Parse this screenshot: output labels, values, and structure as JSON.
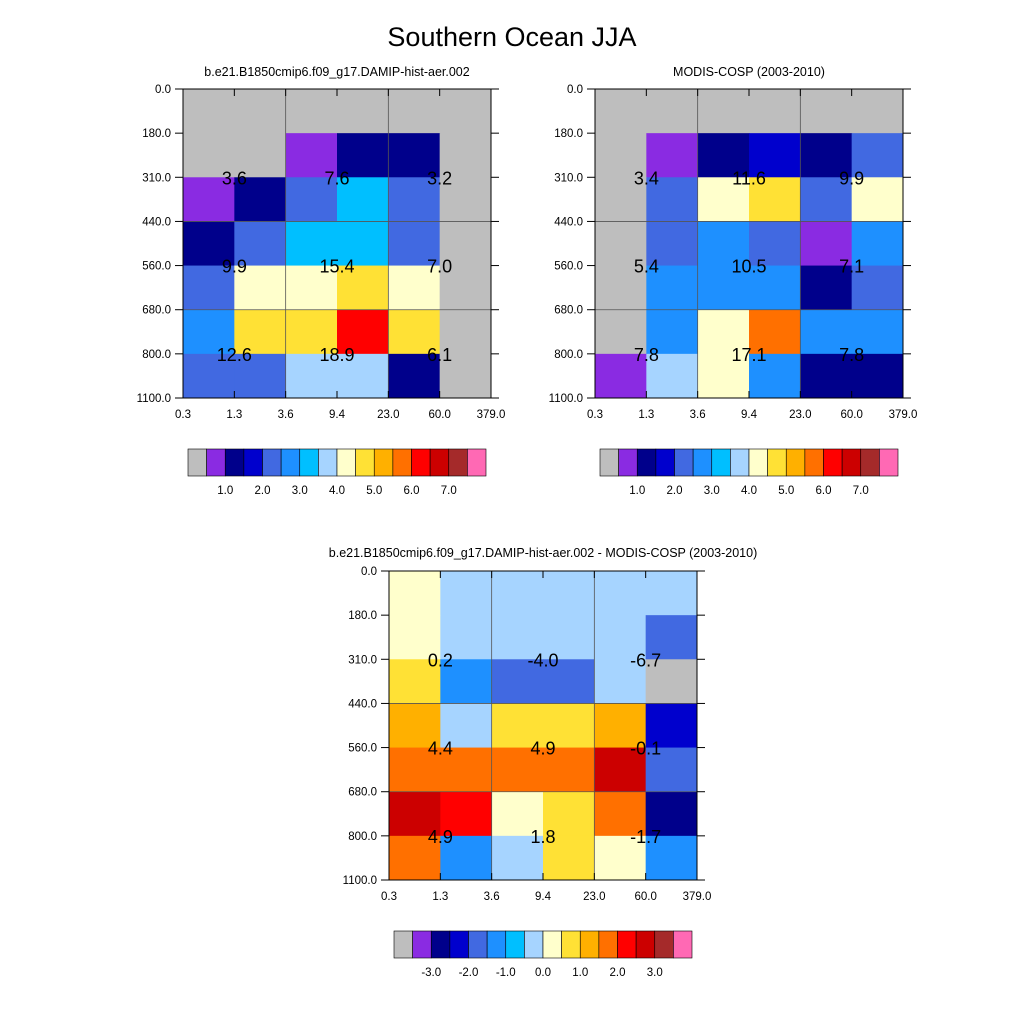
{
  "title": "Southern Ocean JJA",
  "panels": [
    {
      "id": "model",
      "title": "b.e21.B1850cmip6.f09_g17.DAMIP-hist-aer.002",
      "colorbar": "abs"
    },
    {
      "id": "obs",
      "title": "MODIS-COSP (2003-2010)",
      "colorbar": "abs"
    },
    {
      "id": "diff",
      "title": "b.e21.B1850cmip6.f09_g17.DAMIP-hist-aer.002 - MODIS-COSP (2003-2010)",
      "colorbar": "diff"
    }
  ],
  "colorbars": {
    "abs": {
      "colors": [
        "#bebebe",
        "#8a2be2",
        "#00008b",
        "#0000cd",
        "#4169e1",
        "#1e90ff",
        "#00bfff",
        "#a6d4ff",
        "#ffffcc",
        "#ffe135",
        "#ffb000",
        "#ff7000",
        "#ff0000",
        "#cc0000",
        "#a52a2a",
        "#ff69b4"
      ],
      "labels": [
        "1.0",
        "2.0",
        "3.0",
        "4.0",
        "5.0",
        "6.0",
        "7.0"
      ]
    },
    "diff": {
      "colors": [
        "#bebebe",
        "#8a2be2",
        "#00008b",
        "#0000cd",
        "#4169e1",
        "#1e90ff",
        "#00bfff",
        "#a6d4ff",
        "#ffffcc",
        "#ffe135",
        "#ffb000",
        "#ff7000",
        "#ff0000",
        "#cc0000",
        "#a52a2a",
        "#ff69b4"
      ],
      "labels": [
        "-3.0",
        "-2.0",
        "-1.0",
        "0.0",
        "1.0",
        "2.0",
        "3.0"
      ]
    }
  },
  "chart_data": [
    {
      "type": "heatmap",
      "title": "b.e21.B1850cmip6.f09_g17.DAMIP-hist-aer.002",
      "x_ticks": [
        "0.3",
        "1.3",
        "3.6",
        "9.4",
        "23.0",
        "60.0",
        "379.0"
      ],
      "y_ticks": [
        "0.0",
        "180.0",
        "310.0",
        "440.0",
        "560.0",
        "680.0",
        "800.0",
        "1100.0"
      ],
      "cell_colors": [
        [
          "#bebebe",
          "#bebebe",
          "#bebebe",
          "#bebebe",
          "#bebebe",
          "#bebebe"
        ],
        [
          "#bebebe",
          "#bebebe",
          "#8a2be2",
          "#00008b",
          "#00008b",
          "#bebebe"
        ],
        [
          "#8a2be2",
          "#00008b",
          "#4169e1",
          "#00bfff",
          "#4169e1",
          "#bebebe"
        ],
        [
          "#00008b",
          "#4169e1",
          "#00bfff",
          "#00bfff",
          "#4169e1",
          "#bebebe"
        ],
        [
          "#4169e1",
          "#ffffcc",
          "#ffffcc",
          "#ffe135",
          "#ffffcc",
          "#bebebe"
        ],
        [
          "#1e90ff",
          "#ffe135",
          "#ffe135",
          "#ff0000",
          "#ffe135",
          "#bebebe"
        ],
        [
          "#4169e1",
          "#4169e1",
          "#a6d4ff",
          "#a6d4ff",
          "#00008b",
          "#bebebe"
        ]
      ],
      "block_values": [
        [
          "3.6",
          "7.6",
          "3.2"
        ],
        [
          "9.9",
          "15.4",
          "7.0"
        ],
        [
          "12.6",
          "18.9",
          "6.1"
        ]
      ]
    },
    {
      "type": "heatmap",
      "title": "MODIS-COSP (2003-2010)",
      "x_ticks": [
        "0.3",
        "1.3",
        "3.6",
        "9.4",
        "23.0",
        "60.0",
        "379.0"
      ],
      "y_ticks": [
        "0.0",
        "180.0",
        "310.0",
        "440.0",
        "560.0",
        "680.0",
        "800.0",
        "1100.0"
      ],
      "cell_colors": [
        [
          "#bebebe",
          "#bebebe",
          "#bebebe",
          "#bebebe",
          "#bebebe",
          "#bebebe"
        ],
        [
          "#bebebe",
          "#8a2be2",
          "#00008b",
          "#0000cd",
          "#00008b",
          "#4169e1"
        ],
        [
          "#bebebe",
          "#4169e1",
          "#ffffcc",
          "#ffe135",
          "#4169e1",
          "#ffffcc"
        ],
        [
          "#bebebe",
          "#4169e1",
          "#1e90ff",
          "#4169e1",
          "#8a2be2",
          "#1e90ff"
        ],
        [
          "#bebebe",
          "#1e90ff",
          "#1e90ff",
          "#1e90ff",
          "#00008b",
          "#4169e1"
        ],
        [
          "#bebebe",
          "#1e90ff",
          "#ffffcc",
          "#ff7000",
          "#1e90ff",
          "#1e90ff"
        ],
        [
          "#8a2be2",
          "#a6d4ff",
          "#ffffcc",
          "#1e90ff",
          "#00008b",
          "#00008b"
        ]
      ],
      "block_values": [
        [
          "3.4",
          "11.6",
          "9.9"
        ],
        [
          "5.4",
          "10.5",
          "7.1"
        ],
        [
          "7.8",
          "17.1",
          "7.8"
        ]
      ]
    },
    {
      "type": "heatmap",
      "title": "b.e21.B1850cmip6.f09_g17.DAMIP-hist-aer.002 - MODIS-COSP (2003-2010)",
      "x_ticks": [
        "0.3",
        "1.3",
        "3.6",
        "9.4",
        "23.0",
        "60.0",
        "379.0"
      ],
      "y_ticks": [
        "0.0",
        "180.0",
        "310.0",
        "440.0",
        "560.0",
        "680.0",
        "800.0",
        "1100.0"
      ],
      "cell_colors": [
        [
          "#ffffcc",
          "#a6d4ff",
          "#a6d4ff",
          "#a6d4ff",
          "#a6d4ff",
          "#a6d4ff"
        ],
        [
          "#ffffcc",
          "#a6d4ff",
          "#a6d4ff",
          "#a6d4ff",
          "#a6d4ff",
          "#4169e1"
        ],
        [
          "#ffe135",
          "#1e90ff",
          "#4169e1",
          "#4169e1",
          "#a6d4ff",
          "#bebebe"
        ],
        [
          "#ffb000",
          "#a6d4ff",
          "#ffe135",
          "#ffe135",
          "#ffb000",
          "#0000cd"
        ],
        [
          "#ff7000",
          "#ff7000",
          "#ff7000",
          "#ff7000",
          "#cc0000",
          "#4169e1"
        ],
        [
          "#cc0000",
          "#ff0000",
          "#ffffcc",
          "#ffe135",
          "#ff7000",
          "#00008b"
        ],
        [
          "#ff7000",
          "#1e90ff",
          "#a6d4ff",
          "#ffe135",
          "#ffffcc",
          "#1e90ff"
        ]
      ],
      "block_values": [
        [
          "0.2",
          "-4.0",
          "-6.7"
        ],
        [
          "4.4",
          "4.9",
          "-0.1"
        ],
        [
          "4.9",
          "1.8",
          "-1.7"
        ]
      ]
    }
  ]
}
